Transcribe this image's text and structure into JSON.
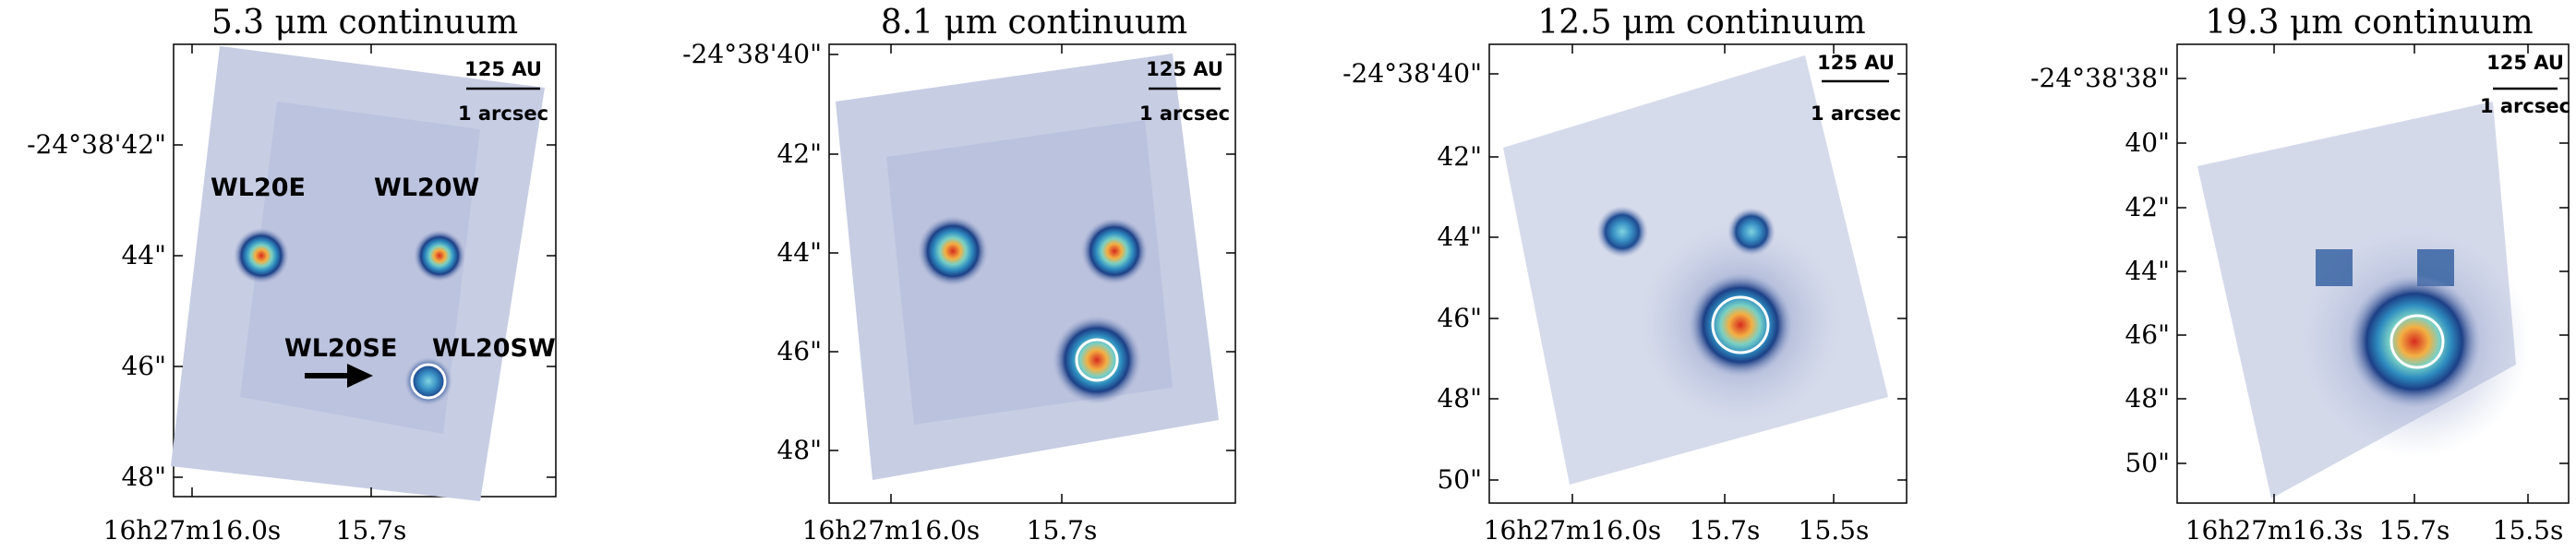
{
  "panels": [
    {
      "title": "5.3 μm continuum",
      "scalebar": {
        "au": "125 AU",
        "arcsec": "1 arcsec"
      },
      "x_ticks": [
        "16h27m16.0s",
        "15.7s"
      ],
      "y_ticks": [
        "-24°38'42\"",
        "44\"",
        "46\"",
        "48\""
      ],
      "labels": {
        "wl20e": "WL20E",
        "wl20w": "WL20W",
        "wl20se": "WL20SE",
        "wl20sw": "WL20SW"
      }
    },
    {
      "title": "8.1 μm continuum",
      "scalebar": {
        "au": "125 AU",
        "arcsec": "1 arcsec"
      },
      "x_ticks": [
        "16h27m16.0s",
        "15.7s"
      ],
      "y_ticks": [
        "-24°38'40\"",
        "42\"",
        "44\"",
        "46\"",
        "48\""
      ]
    },
    {
      "title": "12.5 μm continuum",
      "scalebar": {
        "au": "125 AU",
        "arcsec": "1 arcsec"
      },
      "x_ticks": [
        "16h27m16.0s",
        "15.7s",
        "15.5s"
      ],
      "y_ticks": [
        "-24°38'40\"",
        "42\"",
        "44\"",
        "46\"",
        "48\"",
        "50\""
      ]
    },
    {
      "title": "19.3 μm continuum",
      "scalebar": {
        "au": "125 AU",
        "arcsec": "1 arcsec"
      },
      "x_ticks": [
        "16h27m16.3s",
        "15.7s",
        "15.5s"
      ],
      "y_ticks": [
        "-24°38'38\"",
        "40\"",
        "42\"",
        "44\"",
        "46\"",
        "48\"",
        "50\""
      ]
    }
  ],
  "colors": {
    "background_map": "#c9cfe3",
    "halo": "#1f4b8f",
    "peak": "#e23a1f",
    "ring": "#ffffff"
  }
}
